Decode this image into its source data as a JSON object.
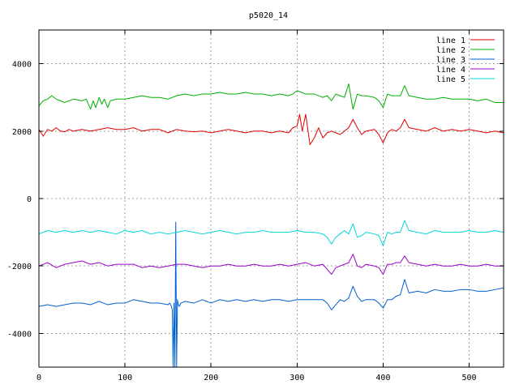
{
  "chart_data": {
    "type": "line",
    "title": "p5020_14",
    "xlabel": "",
    "ylabel": "",
    "xlim": [
      0,
      540
    ],
    "ylim": [
      -5000,
      5000
    ],
    "x_ticks": [
      0,
      100,
      200,
      300,
      400,
      500
    ],
    "y_ticks": [
      4000,
      2000,
      0,
      -2000,
      -4000
    ],
    "grid": true,
    "legend": {
      "placement": "top-right",
      "entries": [
        "line 1",
        "line 2",
        "line 3",
        "line 4",
        "line 5"
      ]
    },
    "series": [
      {
        "name": "line 1",
        "color": "#e00000",
        "x": [
          0,
          5,
          10,
          15,
          20,
          25,
          30,
          35,
          40,
          50,
          60,
          70,
          80,
          90,
          100,
          110,
          120,
          130,
          140,
          150,
          160,
          170,
          180,
          190,
          200,
          210,
          220,
          230,
          240,
          250,
          260,
          270,
          280,
          290,
          295,
          300,
          303,
          306,
          310,
          315,
          320,
          325,
          330,
          335,
          340,
          345,
          350,
          355,
          360,
          365,
          370,
          375,
          380,
          390,
          395,
          400,
          405,
          410,
          415,
          420,
          425,
          430,
          440,
          450,
          460,
          470,
          480,
          490,
          500,
          510,
          520,
          530,
          540
        ],
        "y": [
          2050,
          1850,
          2050,
          2000,
          2100,
          2000,
          1980,
          2050,
          2000,
          2050,
          2000,
          2050,
          2100,
          2050,
          2050,
          2100,
          2000,
          2050,
          2050,
          1950,
          2050,
          2000,
          1980,
          2000,
          1950,
          2000,
          2050,
          2000,
          1950,
          2000,
          2000,
          1950,
          2000,
          1950,
          2100,
          2150,
          2500,
          2000,
          2500,
          1600,
          1800,
          2100,
          1800,
          1950,
          2000,
          1950,
          1900,
          2000,
          2100,
          2350,
          2100,
          1900,
          2000,
          2050,
          1900,
          1650,
          1950,
          2050,
          2000,
          2100,
          2350,
          2100,
          2050,
          2000,
          2100,
          2000,
          2050,
          2000,
          2050,
          2000,
          1950,
          2000,
          1950
        ]
      },
      {
        "name": "line 2",
        "color": "#00b000",
        "x": [
          0,
          5,
          10,
          15,
          20,
          25,
          30,
          40,
          50,
          55,
          60,
          63,
          66,
          70,
          73,
          76,
          80,
          83,
          90,
          100,
          110,
          120,
          130,
          140,
          150,
          160,
          170,
          180,
          190,
          200,
          210,
          220,
          230,
          240,
          250,
          260,
          270,
          280,
          290,
          295,
          300,
          305,
          310,
          320,
          330,
          335,
          340,
          345,
          350,
          355,
          360,
          365,
          370,
          375,
          380,
          390,
          395,
          400,
          405,
          410,
          415,
          420,
          425,
          430,
          440,
          450,
          460,
          470,
          480,
          490,
          500,
          510,
          520,
          530,
          540
        ],
        "y": [
          2750,
          2900,
          2950,
          3050,
          2950,
          2900,
          2850,
          2950,
          2900,
          2950,
          2650,
          2900,
          2700,
          3000,
          2800,
          2950,
          2700,
          2900,
          2950,
          2950,
          3000,
          3050,
          3000,
          3000,
          2950,
          3050,
          3100,
          3050,
          3100,
          3100,
          3150,
          3100,
          3100,
          3150,
          3100,
          3100,
          3050,
          3100,
          3050,
          3100,
          3200,
          3150,
          3100,
          3100,
          3000,
          3050,
          2900,
          3100,
          3050,
          3000,
          3400,
          2650,
          3100,
          3050,
          3050,
          3000,
          2900,
          2700,
          3100,
          3050,
          3050,
          3050,
          3350,
          3050,
          3000,
          2950,
          2950,
          3000,
          2950,
          2950,
          2950,
          2900,
          2950,
          2850,
          2850
        ]
      },
      {
        "name": "line 3",
        "color": "#0060d0",
        "x": [
          0,
          10,
          20,
          30,
          40,
          50,
          60,
          70,
          80,
          90,
          100,
          110,
          120,
          130,
          140,
          150,
          152,
          154,
          155,
          156,
          157,
          158,
          159,
          160,
          161,
          162,
          163,
          165,
          170,
          180,
          190,
          200,
          210,
          220,
          230,
          240,
          250,
          260,
          270,
          280,
          290,
          300,
          310,
          320,
          330,
          335,
          340,
          345,
          350,
          355,
          360,
          365,
          370,
          375,
          380,
          390,
          395,
          400,
          405,
          410,
          415,
          420,
          425,
          430,
          440,
          450,
          460,
          470,
          480,
          490,
          500,
          510,
          520,
          530,
          540
        ],
        "y": [
          -3200,
          -3150,
          -3200,
          -3150,
          -3100,
          -3100,
          -3150,
          -3050,
          -3150,
          -3100,
          -3100,
          -3000,
          -3050,
          -3100,
          -3100,
          -3150,
          -3100,
          -3200,
          -3300,
          -5000,
          -3100,
          -5000,
          -700,
          -5000,
          -3000,
          -3150,
          -3200,
          -3100,
          -3050,
          -3100,
          -3000,
          -3100,
          -3000,
          -3050,
          -3000,
          -3050,
          -3000,
          -3050,
          -3000,
          -3000,
          -3050,
          -3000,
          -3000,
          -3000,
          -3000,
          -3100,
          -3300,
          -3150,
          -3000,
          -3050,
          -2950,
          -2600,
          -2900,
          -3050,
          -3000,
          -3000,
          -3100,
          -3250,
          -3000,
          -3000,
          -2900,
          -2850,
          -2400,
          -2800,
          -2750,
          -2800,
          -2700,
          -2750,
          -2750,
          -2700,
          -2700,
          -2750,
          -2750,
          -2700,
          -2650
        ]
      },
      {
        "name": "line 4",
        "color": "#9900cc",
        "x": [
          0,
          10,
          20,
          30,
          40,
          50,
          60,
          70,
          80,
          90,
          100,
          110,
          120,
          130,
          140,
          150,
          160,
          170,
          180,
          190,
          200,
          210,
          220,
          230,
          240,
          250,
          260,
          270,
          280,
          290,
          300,
          310,
          320,
          330,
          335,
          340,
          345,
          350,
          355,
          360,
          365,
          370,
          375,
          380,
          390,
          395,
          400,
          405,
          410,
          415,
          420,
          425,
          430,
          440,
          450,
          460,
          470,
          480,
          490,
          500,
          510,
          520,
          530,
          540
        ],
        "y": [
          -2000,
          -1900,
          -2050,
          -1950,
          -1900,
          -1850,
          -1950,
          -1900,
          -2000,
          -1950,
          -1950,
          -1950,
          -2050,
          -2000,
          -2050,
          -2000,
          -1950,
          -1950,
          -2000,
          -2050,
          -2000,
          -2000,
          -1950,
          -2000,
          -2000,
          -1950,
          -2000,
          -2000,
          -1950,
          -2000,
          -1950,
          -1900,
          -2000,
          -1950,
          -2100,
          -2250,
          -2050,
          -2000,
          -1950,
          -1900,
          -1650,
          -2000,
          -2050,
          -1950,
          -2000,
          -2050,
          -2250,
          -1950,
          -1950,
          -1900,
          -1900,
          -1700,
          -1900,
          -1950,
          -2000,
          -1950,
          -2000,
          -2000,
          -1950,
          -2000,
          -2000,
          -1950,
          -2000,
          -2000
        ]
      },
      {
        "name": "line 5",
        "color": "#00d8d8",
        "x": [
          0,
          10,
          20,
          30,
          40,
          50,
          60,
          70,
          80,
          90,
          100,
          110,
          120,
          130,
          140,
          150,
          160,
          170,
          180,
          190,
          200,
          210,
          220,
          230,
          240,
          250,
          260,
          270,
          280,
          290,
          300,
          310,
          320,
          330,
          335,
          340,
          345,
          350,
          355,
          360,
          365,
          370,
          375,
          380,
          390,
          395,
          400,
          405,
          410,
          415,
          420,
          425,
          430,
          440,
          450,
          460,
          470,
          480,
          490,
          500,
          510,
          520,
          530,
          540
        ],
        "y": [
          -1050,
          -950,
          -1000,
          -950,
          -1000,
          -950,
          -1000,
          -950,
          -1000,
          -1050,
          -950,
          -1000,
          -950,
          -1050,
          -1000,
          -1050,
          -1000,
          -950,
          -1000,
          -1050,
          -1000,
          -950,
          -1000,
          -1050,
          -1000,
          -1000,
          -950,
          -1000,
          -1000,
          -1000,
          -950,
          -1000,
          -1000,
          -1050,
          -1150,
          -1350,
          -1150,
          -1050,
          -950,
          -1050,
          -750,
          -1150,
          -1100,
          -1000,
          -1050,
          -1100,
          -1400,
          -1000,
          -1050,
          -1000,
          -1000,
          -650,
          -950,
          -1000,
          -1050,
          -950,
          -1000,
          -1000,
          -1000,
          -950,
          -1000,
          -1000,
          -950,
          -1000
        ]
      }
    ]
  }
}
